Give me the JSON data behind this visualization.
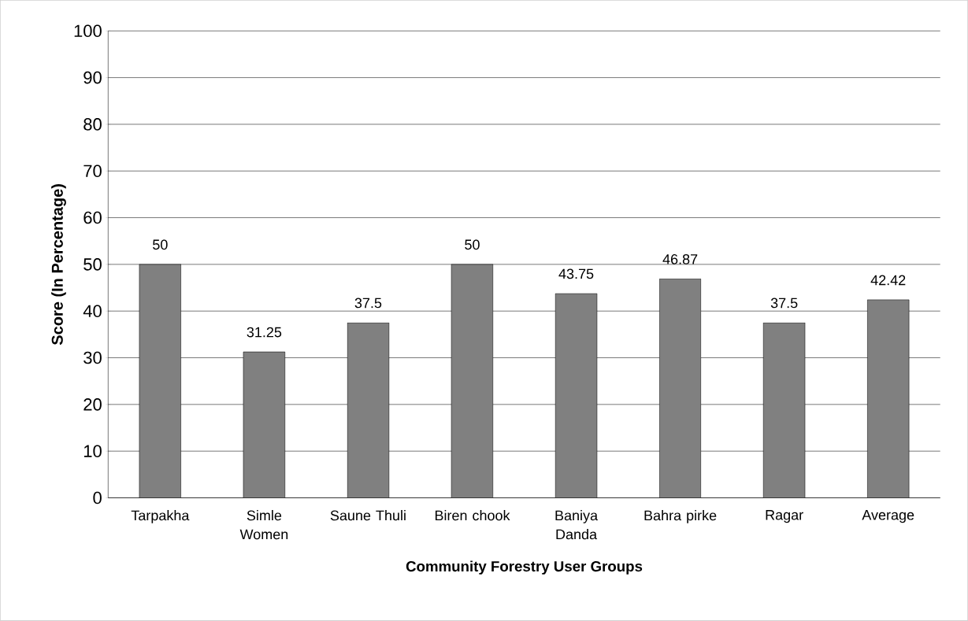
{
  "chart_data": {
    "type": "bar",
    "xlabel": "Community Forestry User Groups",
    "ylabel": "Score (In Percentage)",
    "categories": [
      "Tarpakha",
      "Simle Women",
      "Saune Thuli",
      "Biren chook",
      "Baniya Danda",
      "Bahra pirke",
      "Ragar",
      "Average"
    ],
    "values": [
      50,
      31.25,
      37.5,
      50,
      43.75,
      46.87,
      37.5,
      42.42
    ],
    "color": "#808080",
    "ylim": [
      0,
      100
    ],
    "yticks": [
      0,
      10,
      20,
      30,
      40,
      50,
      60,
      70,
      80,
      90,
      100
    ],
    "grid": "y",
    "data_labels": true
  }
}
